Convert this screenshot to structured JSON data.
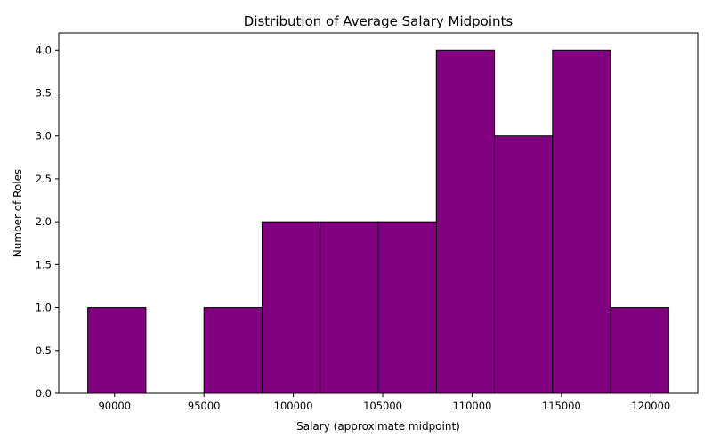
{
  "chart_data": {
    "type": "bar",
    "subtype": "histogram",
    "title": "Distribution of Average Salary Midpoints",
    "xlabel": "Salary (approximate midpoint)",
    "ylabel": "Number of Roles",
    "bin_edges": [
      88500,
      91750,
      95000,
      98250,
      101500,
      104750,
      108000,
      111250,
      114500,
      117750,
      121000
    ],
    "values": [
      1,
      0,
      1,
      2,
      2,
      2,
      4,
      3,
      4,
      1
    ],
    "xlim": [
      86875,
      122625
    ],
    "ylim": [
      0,
      4.2
    ],
    "xticks": [
      90000,
      95000,
      100000,
      105000,
      110000,
      115000,
      120000
    ],
    "yticks": [
      0.0,
      0.5,
      1.0,
      1.5,
      2.0,
      2.5,
      3.0,
      3.5,
      4.0
    ],
    "bar_color": "#800080",
    "edge_color": "#000000",
    "grid": false
  }
}
